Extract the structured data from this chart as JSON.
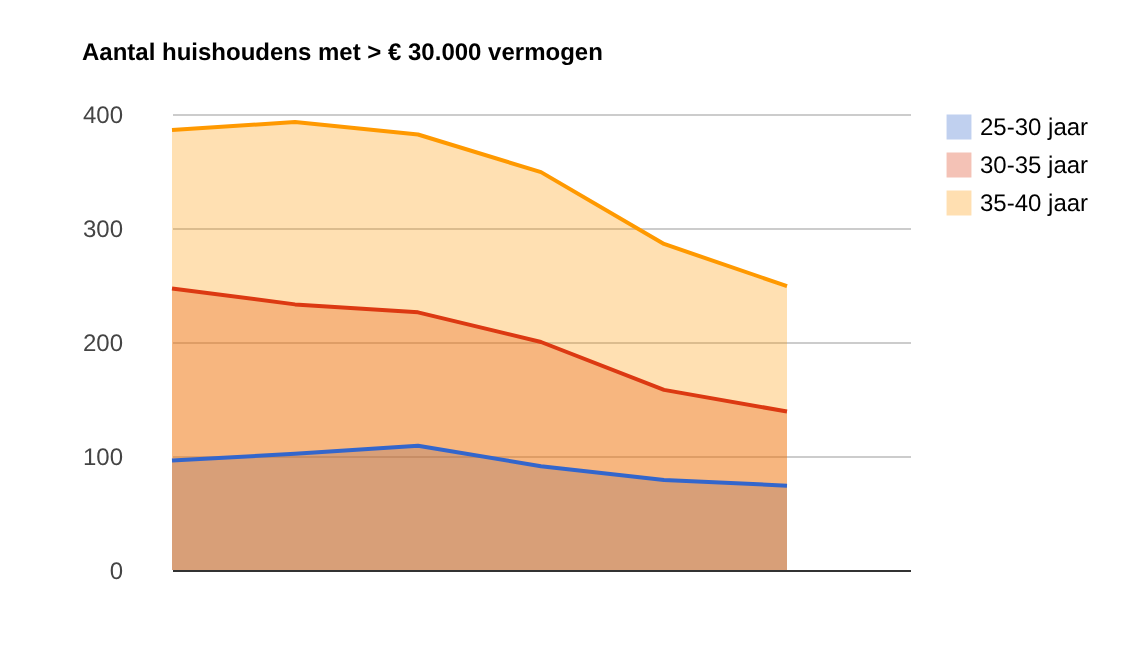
{
  "chart_data": {
    "type": "area",
    "title": "Aantal huishoudens met > € 30.000 vermogen",
    "categories": [
      null,
      null,
      null,
      null,
      null,
      null
    ],
    "series": [
      {
        "name": "25-30 jaar",
        "color": "#3366cc",
        "values": [
          96,
          102,
          109,
          91,
          79,
          74
        ]
      },
      {
        "name": "30-35 jaar",
        "color": "#dc3912",
        "values": [
          247,
          233,
          226,
          200,
          158,
          139
        ]
      },
      {
        "name": "35-40 jaar",
        "color": "#ff9900",
        "values": [
          386,
          393,
          382,
          349,
          286,
          249
        ]
      }
    ],
    "ylim": [
      0,
      400
    ],
    "yticks": [
      0,
      100,
      200,
      300,
      400
    ],
    "grid": "y",
    "legend": "right"
  }
}
